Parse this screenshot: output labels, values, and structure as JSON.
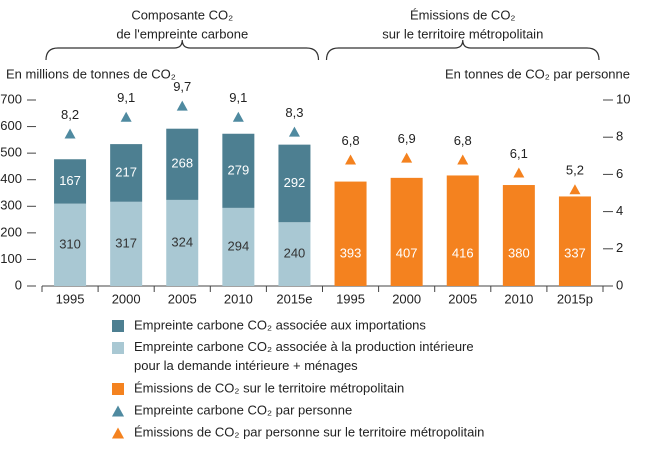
{
  "chart_data": {
    "type": "bar",
    "groups": [
      {
        "label": [
          "Composante CO₂",
          "de l'empreinte carbone"
        ]
      },
      {
        "label": [
          "Émissions de CO₂",
          "sur le territoire métropolitain"
        ]
      }
    ],
    "y_label": "En millions de tonnes de CO₂",
    "y2_label": "En tonnes de CO₂ par personne",
    "categories": [
      "1995",
      "2000",
      "2005",
      "2010",
      "2015e",
      "1995",
      "2000",
      "2005",
      "2010",
      "2015p"
    ],
    "series": [
      {
        "name": "Empreinte carbone CO₂ associée aux importations",
        "type": "bar",
        "stacked": true,
        "color": "#4d7f91",
        "label_color": "#ffffff",
        "values": [
          167,
          217,
          268,
          279,
          292,
          null,
          null,
          null,
          null,
          null
        ]
      },
      {
        "name": "Empreinte carbone CO₂ associée à la production intérieure\npour la demande intérieure + ménages",
        "type": "bar",
        "stacked": true,
        "color": "#a9c8d3",
        "label_color": "#333333",
        "values": [
          310,
          317,
          324,
          294,
          240,
          null,
          null,
          null,
          null,
          null
        ]
      },
      {
        "name": "Émissions de CO₂ sur le territoire métropolitain",
        "type": "bar",
        "stacked": false,
        "color": "#f4821f",
        "label_color": "#ffffff",
        "values": [
          null,
          null,
          null,
          null,
          null,
          393,
          407,
          416,
          380,
          337
        ]
      },
      {
        "name": "Empreinte carbone CO₂ par personne",
        "type": "marker",
        "axis": "y2",
        "color": "#4f8aa0",
        "values": [
          8.2,
          9.1,
          9.7,
          9.1,
          8.3,
          null,
          null,
          null,
          null,
          null
        ],
        "value_labels": [
          "8,2",
          "9,1",
          "9,7",
          "9,1",
          "8,3",
          null,
          null,
          null,
          null,
          null
        ]
      },
      {
        "name": "Émissions de CO₂ par personne sur le territoire métropolitain",
        "type": "marker",
        "axis": "y2",
        "color": "#f4821f",
        "values": [
          null,
          null,
          null,
          null,
          null,
          6.8,
          6.9,
          6.8,
          6.1,
          5.2
        ],
        "value_labels": [
          null,
          null,
          null,
          null,
          null,
          "6,8",
          "6,9",
          "6,8",
          "6,1",
          "5,2"
        ]
      }
    ],
    "ylim": [
      0,
      700
    ],
    "yticks": [
      0,
      100,
      200,
      300,
      400,
      500,
      600,
      700
    ],
    "y2lim": [
      0,
      10
    ],
    "y2ticks": [
      0,
      2,
      4,
      6,
      8,
      10
    ],
    "grid": false
  }
}
